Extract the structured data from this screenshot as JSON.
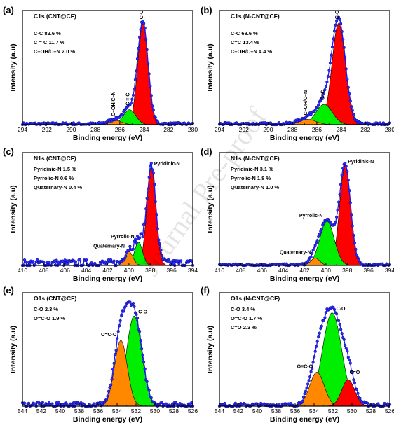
{
  "watermark": "Journal Pre-proof",
  "chart_data": [
    {
      "type": "line",
      "panel_label": "(a)",
      "title": "C1s (CNT@CF)",
      "xlabel": "Binding energy (eV)",
      "ylabel": "Intensity (a.u)",
      "xlim": [
        294,
        280
      ],
      "x_ticks": [
        "294",
        "292",
        "290",
        "288",
        "286",
        "284",
        "282",
        "280"
      ],
      "ylim": [
        0,
        1.07
      ],
      "composition": [
        "C-C  82.6 %",
        "C = C  11.7 %",
        "C–OH/C–N  2.0 %"
      ],
      "components": [
        {
          "name": "C-C",
          "center": 284.1,
          "fwhm": 1.0,
          "height": 0.95,
          "color": "#ff0000",
          "label_rotated": true
        },
        {
          "name": "C = C",
          "center": 285.2,
          "fwhm": 1.2,
          "height": 0.14,
          "color": "#00ee00",
          "label_rotated": true
        },
        {
          "name": "C–OH/C–N",
          "center": 286.4,
          "fwhm": 1.3,
          "height": 0.04,
          "color": "#ff8800",
          "label_rotated": true
        }
      ],
      "noise": 0.012
    },
    {
      "type": "line",
      "panel_label": "(b)",
      "title": "C1s (N-CNT@CF)",
      "xlabel": "Binding energy (eV)",
      "ylabel": "Intensity (a.u)",
      "xlim": [
        294,
        280
      ],
      "x_ticks": [
        "294",
        "292",
        "290",
        "288",
        "286",
        "284",
        "282",
        "280"
      ],
      "ylim": [
        0,
        1.07
      ],
      "composition": [
        "C-C  68.6 %",
        "C=C 13.4 %",
        "C–OH/C–N  4.4 %"
      ],
      "components": [
        {
          "name": "C-C",
          "center": 284.2,
          "fwhm": 1.3,
          "height": 0.95,
          "color": "#ff0000",
          "label_rotated": true
        },
        {
          "name": "C=C",
          "center": 285.4,
          "fwhm": 1.6,
          "height": 0.19,
          "color": "#00ee00",
          "label_rotated": true
        },
        {
          "name": "C–OH/C–N",
          "center": 286.8,
          "fwhm": 1.7,
          "height": 0.05,
          "color": "#ff8800",
          "label_rotated": true
        }
      ],
      "noise": 0.012
    },
    {
      "type": "line",
      "panel_label": "(c)",
      "title": "N1s (CNT@CF)",
      "xlabel": "Binding energy (eV)",
      "ylabel": "Intensity (a.u)",
      "xlim": [
        410,
        394
      ],
      "x_ticks": [
        "410",
        "408",
        "406",
        "404",
        "402",
        "400",
        "398",
        "396",
        "394"
      ],
      "ylim": [
        0,
        1.07
      ],
      "composition": [
        "Pyridinic-N  1.5 %",
        "Pyrrolic-N  0.6 %",
        "Quaternary-N  0.4 %"
      ],
      "components": [
        {
          "name": "Pyridinic-N",
          "center": 397.9,
          "fwhm": 1.0,
          "height": 0.93,
          "color": "#ff0000",
          "label_rotated": false
        },
        {
          "name": "Pyrrolic-N",
          "center": 399.1,
          "fwhm": 0.9,
          "height": 0.22,
          "color": "#00ee00",
          "label_rotated": false
        },
        {
          "name": "Quaternary-N",
          "center": 400.0,
          "fwhm": 0.9,
          "height": 0.13,
          "color": "#ff8800",
          "label_rotated": false
        }
      ],
      "noise": 0.035
    },
    {
      "type": "line",
      "panel_label": "(d)",
      "title": "N1s (N-CNT@CF)",
      "xlabel": "Binding energy (eV)",
      "ylabel": "Intensity (a.u)",
      "xlim": [
        410,
        394
      ],
      "x_ticks": [
        "410",
        "408",
        "406",
        "404",
        "402",
        "400",
        "398",
        "396",
        "394"
      ],
      "ylim": [
        0,
        1.07
      ],
      "composition": [
        "Pyridinic-N  3.1 %",
        "Pyrrolic-N  1.8 %",
        "Quaternary-N  1.0 %"
      ],
      "components": [
        {
          "name": "Pyridinic-N",
          "center": 398.2,
          "fwhm": 1.2,
          "height": 0.95,
          "color": "#ff0000",
          "label_rotated": false
        },
        {
          "name": "Pyrrolic-N",
          "center": 399.9,
          "fwhm": 1.6,
          "height": 0.42,
          "color": "#00ee00",
          "label_rotated": false
        },
        {
          "name": "Quaternary-N",
          "center": 401.0,
          "fwhm": 1.0,
          "height": 0.07,
          "color": "#ff8800",
          "label_rotated": false
        }
      ],
      "noise": 0.01
    },
    {
      "type": "line",
      "panel_label": "(e)",
      "title": "O1s (CNT@CF)",
      "xlabel": "Binding energy (eV)",
      "ylabel": "Intensity (a.u)",
      "xlim": [
        544,
        526
      ],
      "x_ticks": [
        "544",
        "542",
        "540",
        "538",
        "536",
        "534",
        "532",
        "530",
        "528",
        "526"
      ],
      "ylim": [
        0,
        1.07
      ],
      "composition": [
        "C-O 2.3 %",
        "O=C-O 1.9 %"
      ],
      "components": [
        {
          "name": "C-O",
          "center": 532.2,
          "fwhm": 1.9,
          "height": 0.85,
          "color": "#00ee00",
          "label_rotated": false
        },
        {
          "name": "O=C-O",
          "center": 533.6,
          "fwhm": 1.6,
          "height": 0.62,
          "color": "#ff8800",
          "label_rotated": false
        }
      ],
      "noise": 0.025
    },
    {
      "type": "line",
      "panel_label": "(f)",
      "title": "O1s (N-CNT@CF)",
      "xlabel": "Binding energy (eV)",
      "ylabel": "Intensity (a.u)",
      "xlim": [
        544,
        526
      ],
      "x_ticks": [
        "544",
        "542",
        "540",
        "538",
        "536",
        "534",
        "532",
        "530",
        "528",
        "526"
      ],
      "ylim": [
        0,
        1.07
      ],
      "composition": [
        "C-O 3.4 %",
        "O=C-O 1.7 %",
        "C=O 2.3 %"
      ],
      "components": [
        {
          "name": "C-O",
          "center": 532.1,
          "fwhm": 2.4,
          "height": 0.88,
          "color": "#00ee00",
          "label_rotated": false
        },
        {
          "name": "O=C-O",
          "center": 533.7,
          "fwhm": 1.8,
          "height": 0.32,
          "color": "#ff8800",
          "label_rotated": false
        },
        {
          "name": "C=O",
          "center": 530.4,
          "fwhm": 1.6,
          "height": 0.25,
          "color": "#ff0000",
          "label_rotated": false
        }
      ],
      "noise": 0.018
    }
  ]
}
